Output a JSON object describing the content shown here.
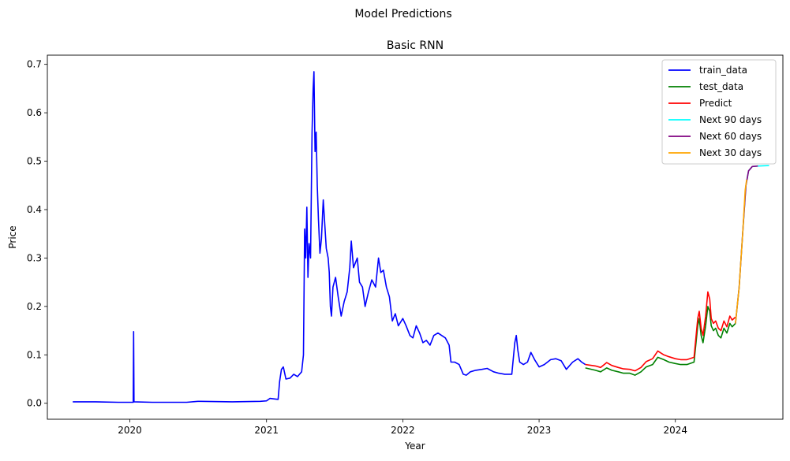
{
  "figure_title": "Model Predictions",
  "chart_data": {
    "type": "line",
    "title": "Basic RNN",
    "xlabel": "Year",
    "ylabel": "Price",
    "xlim": [
      "2019-05-25",
      "2024-10-15"
    ],
    "ylim": [
      -0.033,
      0.719
    ],
    "x_ticks": [
      "2020",
      "2021",
      "2022",
      "2023",
      "2024"
    ],
    "x_tick_dates": [
      "2020-01-01",
      "2021-01-01",
      "2022-01-01",
      "2023-01-01",
      "2024-01-01"
    ],
    "y_ticks": [
      0.0,
      0.1,
      0.2,
      0.3,
      0.4,
      0.5,
      0.6,
      0.7
    ],
    "y_tick_labels": [
      "0.0",
      "0.1",
      "0.2",
      "0.3",
      "0.4",
      "0.5",
      "0.6",
      "0.7"
    ],
    "grid": false,
    "legend_position": "top-right",
    "series": [
      {
        "name": "train_data",
        "color": "#0000ff",
        "points": [
          [
            "2019-08-01",
            0.003
          ],
          [
            "2019-10-01",
            0.003
          ],
          [
            "2019-12-01",
            0.002
          ],
          [
            "2020-01-10",
            0.002
          ],
          [
            "2020-01-11",
            0.148
          ],
          [
            "2020-01-12",
            0.003
          ],
          [
            "2020-03-01",
            0.002
          ],
          [
            "2020-06-01",
            0.002
          ],
          [
            "2020-07-01",
            0.004
          ],
          [
            "2020-10-01",
            0.003
          ],
          [
            "2020-12-15",
            0.004
          ],
          [
            "2021-01-01",
            0.005
          ],
          [
            "2021-01-10",
            0.01
          ],
          [
            "2021-02-01",
            0.008
          ],
          [
            "2021-02-05",
            0.045
          ],
          [
            "2021-02-10",
            0.07
          ],
          [
            "2021-02-15",
            0.075
          ],
          [
            "2021-02-22",
            0.05
          ],
          [
            "2021-03-05",
            0.052
          ],
          [
            "2021-03-15",
            0.06
          ],
          [
            "2021-03-25",
            0.055
          ],
          [
            "2021-04-05",
            0.065
          ],
          [
            "2021-04-10",
            0.1
          ],
          [
            "2021-04-13",
            0.36
          ],
          [
            "2021-04-16",
            0.3
          ],
          [
            "2021-04-19",
            0.405
          ],
          [
            "2021-04-22",
            0.26
          ],
          [
            "2021-04-25",
            0.33
          ],
          [
            "2021-04-29",
            0.3
          ],
          [
            "2021-05-03",
            0.56
          ],
          [
            "2021-05-06",
            0.65
          ],
          [
            "2021-05-08",
            0.685
          ],
          [
            "2021-05-11",
            0.52
          ],
          [
            "2021-05-14",
            0.56
          ],
          [
            "2021-05-17",
            0.45
          ],
          [
            "2021-05-20",
            0.38
          ],
          [
            "2021-05-24",
            0.31
          ],
          [
            "2021-05-28",
            0.34
          ],
          [
            "2021-06-02",
            0.42
          ],
          [
            "2021-06-06",
            0.37
          ],
          [
            "2021-06-10",
            0.32
          ],
          [
            "2021-06-15",
            0.3
          ],
          [
            "2021-06-18",
            0.27
          ],
          [
            "2021-06-21",
            0.2
          ],
          [
            "2021-06-24",
            0.18
          ],
          [
            "2021-06-28",
            0.24
          ],
          [
            "2021-07-05",
            0.26
          ],
          [
            "2021-07-12",
            0.22
          ],
          [
            "2021-07-20",
            0.18
          ],
          [
            "2021-07-28",
            0.21
          ],
          [
            "2021-08-05",
            0.23
          ],
          [
            "2021-08-12",
            0.28
          ],
          [
            "2021-08-16",
            0.335
          ],
          [
            "2021-08-22",
            0.28
          ],
          [
            "2021-09-01",
            0.3
          ],
          [
            "2021-09-07",
            0.25
          ],
          [
            "2021-09-15",
            0.24
          ],
          [
            "2021-09-22",
            0.2
          ],
          [
            "2021-10-01",
            0.23
          ],
          [
            "2021-10-10",
            0.255
          ],
          [
            "2021-10-20",
            0.24
          ],
          [
            "2021-10-28",
            0.3
          ],
          [
            "2021-11-03",
            0.27
          ],
          [
            "2021-11-10",
            0.275
          ],
          [
            "2021-11-18",
            0.24
          ],
          [
            "2021-11-26",
            0.22
          ],
          [
            "2021-12-04",
            0.17
          ],
          [
            "2021-12-12",
            0.185
          ],
          [
            "2021-12-20",
            0.16
          ],
          [
            "2022-01-01",
            0.175
          ],
          [
            "2022-01-10",
            0.16
          ],
          [
            "2022-01-20",
            0.14
          ],
          [
            "2022-01-28",
            0.135
          ],
          [
            "2022-02-06",
            0.16
          ],
          [
            "2022-02-15",
            0.145
          ],
          [
            "2022-02-24",
            0.125
          ],
          [
            "2022-03-05",
            0.13
          ],
          [
            "2022-03-15",
            0.12
          ],
          [
            "2022-03-25",
            0.14
          ],
          [
            "2022-04-05",
            0.145
          ],
          [
            "2022-04-15",
            0.14
          ],
          [
            "2022-04-25",
            0.135
          ],
          [
            "2022-05-05",
            0.12
          ],
          [
            "2022-05-10",
            0.085
          ],
          [
            "2022-05-20",
            0.085
          ],
          [
            "2022-06-01",
            0.08
          ],
          [
            "2022-06-12",
            0.06
          ],
          [
            "2022-06-20",
            0.058
          ],
          [
            "2022-07-01",
            0.065
          ],
          [
            "2022-07-15",
            0.068
          ],
          [
            "2022-08-01",
            0.07
          ],
          [
            "2022-08-15",
            0.072
          ],
          [
            "2022-09-01",
            0.065
          ],
          [
            "2022-09-15",
            0.062
          ],
          [
            "2022-10-01",
            0.06
          ],
          [
            "2022-10-20",
            0.06
          ],
          [
            "2022-10-28",
            0.125
          ],
          [
            "2022-11-01",
            0.14
          ],
          [
            "2022-11-05",
            0.11
          ],
          [
            "2022-11-10",
            0.085
          ],
          [
            "2022-11-20",
            0.08
          ],
          [
            "2022-12-01",
            0.085
          ],
          [
            "2022-12-10",
            0.105
          ],
          [
            "2022-12-20",
            0.09
          ],
          [
            "2023-01-01",
            0.075
          ],
          [
            "2023-01-15",
            0.08
          ],
          [
            "2023-02-01",
            0.09
          ],
          [
            "2023-02-15",
            0.092
          ],
          [
            "2023-03-01",
            0.088
          ],
          [
            "2023-03-15",
            0.07
          ],
          [
            "2023-04-01",
            0.085
          ],
          [
            "2023-04-15",
            0.092
          ],
          [
            "2023-04-25",
            0.085
          ],
          [
            "2023-05-05",
            0.08
          ]
        ]
      },
      {
        "name": "test_data",
        "color": "#008000",
        "points": [
          [
            "2023-05-05",
            0.073
          ],
          [
            "2023-06-01",
            0.068
          ],
          [
            "2023-06-15",
            0.065
          ],
          [
            "2023-07-01",
            0.073
          ],
          [
            "2023-07-15",
            0.068
          ],
          [
            "2023-08-01",
            0.065
          ],
          [
            "2023-08-15",
            0.062
          ],
          [
            "2023-09-01",
            0.062
          ],
          [
            "2023-09-15",
            0.058
          ],
          [
            "2023-10-01",
            0.065
          ],
          [
            "2023-10-15",
            0.075
          ],
          [
            "2023-11-01",
            0.08
          ],
          [
            "2023-11-15",
            0.095
          ],
          [
            "2023-12-01",
            0.09
          ],
          [
            "2023-12-15",
            0.085
          ],
          [
            "2024-01-01",
            0.082
          ],
          [
            "2024-01-15",
            0.08
          ],
          [
            "2024-02-01",
            0.08
          ],
          [
            "2024-02-20",
            0.085
          ],
          [
            "2024-03-01",
            0.16
          ],
          [
            "2024-03-05",
            0.175
          ],
          [
            "2024-03-10",
            0.14
          ],
          [
            "2024-03-15",
            0.125
          ],
          [
            "2024-03-22",
            0.16
          ],
          [
            "2024-03-28",
            0.2
          ],
          [
            "2024-04-02",
            0.19
          ],
          [
            "2024-04-06",
            0.16
          ],
          [
            "2024-04-12",
            0.15
          ],
          [
            "2024-04-18",
            0.155
          ],
          [
            "2024-04-25",
            0.14
          ],
          [
            "2024-05-02",
            0.135
          ],
          [
            "2024-05-10",
            0.155
          ],
          [
            "2024-05-18",
            0.145
          ],
          [
            "2024-05-26",
            0.165
          ],
          [
            "2024-06-01",
            0.158
          ],
          [
            "2024-06-10",
            0.165
          ]
        ]
      },
      {
        "name": "Predict",
        "color": "#ff0000",
        "points": [
          [
            "2023-05-05",
            0.08
          ],
          [
            "2023-06-01",
            0.077
          ],
          [
            "2023-06-15",
            0.074
          ],
          [
            "2023-07-01",
            0.084
          ],
          [
            "2023-07-15",
            0.078
          ],
          [
            "2023-08-01",
            0.074
          ],
          [
            "2023-08-15",
            0.071
          ],
          [
            "2023-09-01",
            0.07
          ],
          [
            "2023-09-15",
            0.067
          ],
          [
            "2023-10-01",
            0.074
          ],
          [
            "2023-10-15",
            0.086
          ],
          [
            "2023-11-01",
            0.092
          ],
          [
            "2023-11-15",
            0.108
          ],
          [
            "2023-12-01",
            0.1
          ],
          [
            "2023-12-15",
            0.096
          ],
          [
            "2024-01-01",
            0.092
          ],
          [
            "2024-01-15",
            0.09
          ],
          [
            "2024-02-01",
            0.09
          ],
          [
            "2024-02-20",
            0.095
          ],
          [
            "2024-03-01",
            0.175
          ],
          [
            "2024-03-05",
            0.19
          ],
          [
            "2024-03-10",
            0.155
          ],
          [
            "2024-03-15",
            0.14
          ],
          [
            "2024-03-22",
            0.18
          ],
          [
            "2024-03-28",
            0.23
          ],
          [
            "2024-04-02",
            0.215
          ],
          [
            "2024-04-06",
            0.175
          ],
          [
            "2024-04-12",
            0.165
          ],
          [
            "2024-04-18",
            0.17
          ],
          [
            "2024-04-25",
            0.155
          ],
          [
            "2024-05-02",
            0.15
          ],
          [
            "2024-05-10",
            0.17
          ],
          [
            "2024-05-18",
            0.158
          ],
          [
            "2024-05-26",
            0.18
          ],
          [
            "2024-06-01",
            0.172
          ],
          [
            "2024-06-10",
            0.178
          ]
        ]
      },
      {
        "name": "Next 90 days",
        "color": "#00ffff",
        "points": [
          [
            "2024-06-10",
            0.165
          ],
          [
            "2024-06-20",
            0.24
          ],
          [
            "2024-06-30",
            0.36
          ],
          [
            "2024-07-08",
            0.45
          ],
          [
            "2024-07-15",
            0.48
          ],
          [
            "2024-07-25",
            0.489
          ],
          [
            "2024-08-10",
            0.49
          ],
          [
            "2024-09-08",
            0.491
          ]
        ]
      },
      {
        "name": "Next 60 days",
        "color": "#800080",
        "points": [
          [
            "2024-06-10",
            0.165
          ],
          [
            "2024-06-20",
            0.24
          ],
          [
            "2024-06-30",
            0.36
          ],
          [
            "2024-07-08",
            0.45
          ],
          [
            "2024-07-15",
            0.48
          ],
          [
            "2024-07-25",
            0.489
          ],
          [
            "2024-08-09",
            0.49
          ]
        ]
      },
      {
        "name": "Next 30 days",
        "color": "#ffa500",
        "points": [
          [
            "2024-06-10",
            0.165
          ],
          [
            "2024-06-20",
            0.24
          ],
          [
            "2024-06-30",
            0.36
          ],
          [
            "2024-07-06",
            0.44
          ],
          [
            "2024-07-10",
            0.462
          ]
        ]
      }
    ]
  }
}
